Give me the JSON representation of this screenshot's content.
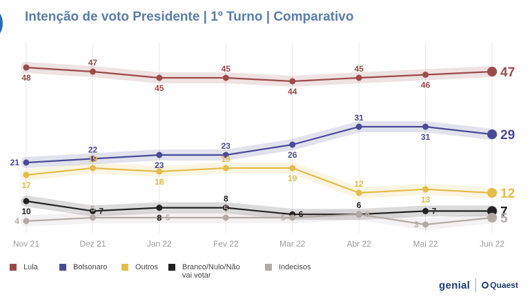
{
  "title": "Intenção de voto Presidente | 1º Turno | Comparativo",
  "logos": {
    "left": "genial",
    "right": "Quaest"
  },
  "chart_data": {
    "type": "line",
    "categories": [
      "Nov 21",
      "Dez 21",
      "Jan 22",
      "Fev 22",
      "Mar 22",
      "Abr 22",
      "Mai 22",
      "Jun 22"
    ],
    "ylim": [
      0,
      50
    ],
    "grid": "vertical",
    "legend_position": "bottom",
    "series": [
      {
        "name": "Lula",
        "color": "#9b4a4a",
        "values": [
          48,
          47,
          45,
          45,
          44,
          45,
          46,
          47
        ],
        "label_pos": [
          "below",
          "above",
          "below",
          "above",
          "below",
          "above",
          "below",
          "right"
        ]
      },
      {
        "name": "Bolsonaro",
        "color": "#4a4a96",
        "values": [
          21,
          22,
          23,
          23,
          26,
          31,
          31,
          29
        ],
        "label_pos": [
          "left",
          "above",
          "below",
          "above",
          "below",
          "above",
          "below",
          "right"
        ]
      },
      {
        "name": "Outros",
        "color": "#e3bc4a",
        "values": [
          17,
          19,
          18,
          19,
          19,
          12,
          13,
          12
        ],
        "label_pos": [
          "below",
          "above",
          "below",
          "above",
          "below",
          "above",
          "below",
          "right"
        ]
      },
      {
        "name": "Branco/Nulo/Não vai votar",
        "color": "#222222",
        "values": [
          10,
          7,
          8,
          8,
          6,
          6,
          7,
          7
        ],
        "label_pos": [
          "below",
          "right",
          "below",
          "above",
          "right",
          "above",
          "right",
          "right"
        ]
      },
      {
        "name": "Indecisos",
        "color": "#b3aaa6",
        "values": [
          4,
          5,
          5,
          5,
          5,
          6,
          3,
          5
        ],
        "label_pos": [
          "left",
          "above",
          "right",
          "above",
          "left",
          "right",
          "left",
          "right"
        ]
      }
    ]
  }
}
